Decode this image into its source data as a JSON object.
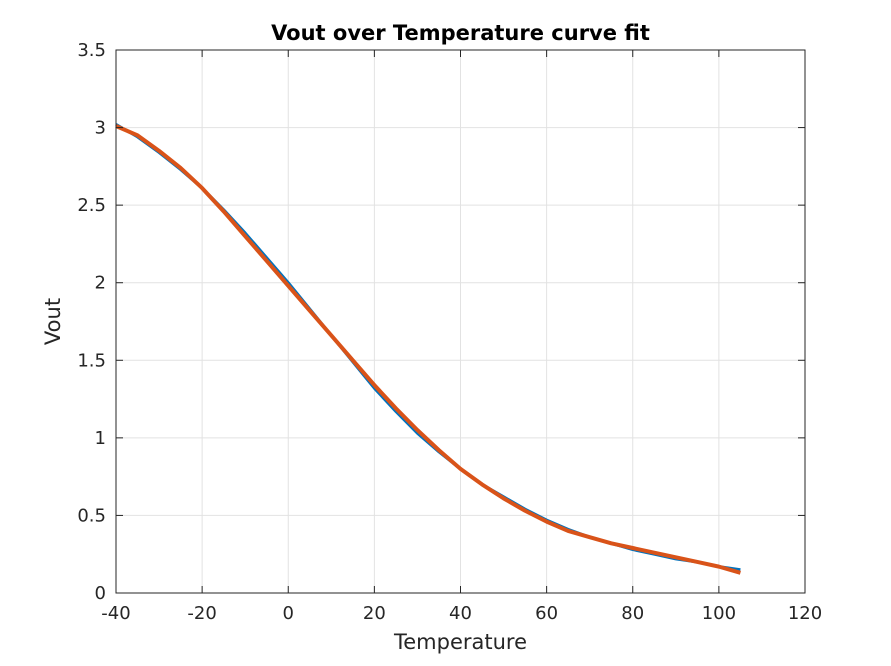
{
  "chart_data": {
    "type": "line",
    "title": "Vout over Temperature curve fit",
    "xlabel": "Temperature",
    "ylabel": "Vout",
    "xlim": [
      -40,
      120
    ],
    "ylim": [
      0,
      3.5
    ],
    "xticks": [
      -40,
      -20,
      0,
      20,
      40,
      60,
      80,
      100,
      120
    ],
    "yticks": [
      0,
      0.5,
      1,
      1.5,
      2,
      2.5,
      3,
      3.5
    ],
    "xtick_labels": [
      "-40",
      "-20",
      "0",
      "20",
      "40",
      "60",
      "80",
      "100",
      "120"
    ],
    "ytick_labels": [
      "0",
      "0.5",
      "1",
      "1.5",
      "2",
      "2.5",
      "3",
      "3.5"
    ],
    "grid": true,
    "box": true,
    "series": [
      {
        "color": "#0072BD",
        "line_width": 3,
        "x": [
          -40,
          -35,
          -30,
          -25,
          -20,
          -15,
          -10,
          -5,
          0,
          5,
          10,
          15,
          20,
          25,
          30,
          35,
          40,
          45,
          50,
          55,
          60,
          65,
          70,
          75,
          80,
          85,
          90,
          95,
          100,
          105
        ],
        "y": [
          3.02,
          2.94,
          2.84,
          2.73,
          2.61,
          2.47,
          2.32,
          2.16,
          2.0,
          1.83,
          1.66,
          1.49,
          1.32,
          1.17,
          1.03,
          0.91,
          0.8,
          0.7,
          0.62,
          0.54,
          0.47,
          0.41,
          0.36,
          0.32,
          0.28,
          0.25,
          0.22,
          0.2,
          0.17,
          0.15
        ]
      },
      {
        "color": "#D95319",
        "line_width": 4,
        "x": [
          -40,
          -35,
          -30,
          -25,
          -20,
          -15,
          -10,
          -5,
          0,
          5,
          10,
          15,
          20,
          25,
          30,
          35,
          40,
          45,
          50,
          55,
          60,
          65,
          70,
          75,
          80,
          85,
          90,
          95,
          100,
          105
        ],
        "y": [
          3.01,
          2.95,
          2.85,
          2.74,
          2.61,
          2.46,
          2.3,
          2.14,
          1.98,
          1.82,
          1.66,
          1.5,
          1.34,
          1.19,
          1.05,
          0.92,
          0.8,
          0.7,
          0.61,
          0.53,
          0.46,
          0.4,
          0.36,
          0.32,
          0.29,
          0.26,
          0.23,
          0.2,
          0.17,
          0.13
        ]
      }
    ]
  }
}
